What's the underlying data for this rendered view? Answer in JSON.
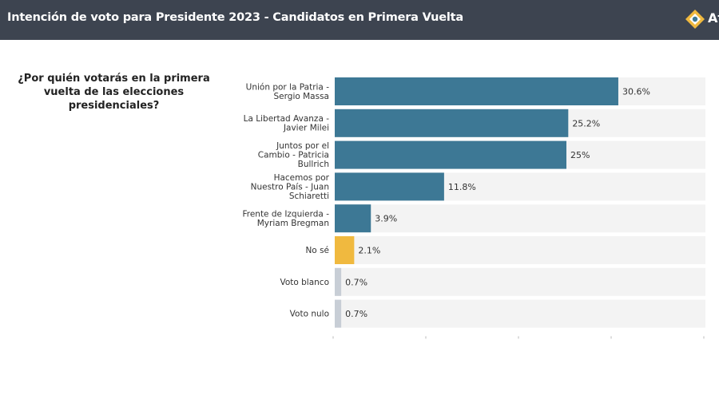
{
  "header": {
    "title": "Intención de voto para Presidente 2023 - Candidatos en Primera Vuelta",
    "brand_text": "At",
    "brand_icon": "brand-logo-icon"
  },
  "question": "¿Por quién votarás en la primera vuelta de las elecciones presidenciales?",
  "chart_data": {
    "type": "bar",
    "orientation": "horizontal",
    "categories": [
      [
        "Unión por la Patria -",
        "Sergio Massa"
      ],
      [
        "La Libertad Avanza -",
        "Javier Milei"
      ],
      [
        "Juntos por el",
        "Cambio - Patricia",
        "Bullrich"
      ],
      [
        "Hacemos por",
        "Nuestro País - Juan",
        "Schiaretti"
      ],
      [
        "Frente de Izquierda -",
        "Myriam Bregman"
      ],
      [
        "No sé"
      ],
      [
        "Voto blanco"
      ],
      [
        "Voto nulo"
      ]
    ],
    "values": [
      30.6,
      25.2,
      25,
      11.8,
      3.9,
      2.1,
      0.7,
      0.7
    ],
    "value_labels": [
      "30.6%",
      "25.2%",
      "25%",
      "11.8%",
      "3.9%",
      "2.1%",
      "0.7%",
      "0.7%"
    ],
    "colors": [
      "#3d7895",
      "#3d7895",
      "#3d7895",
      "#3d7895",
      "#3d7895",
      "#f0b93f",
      "#c8ced6",
      "#c8ced6"
    ],
    "track_color": "#f3f3f3",
    "xlim": [
      0,
      40
    ],
    "x_axis_ticks": 5,
    "x_tick_labels_visible": false,
    "grid": false
  }
}
